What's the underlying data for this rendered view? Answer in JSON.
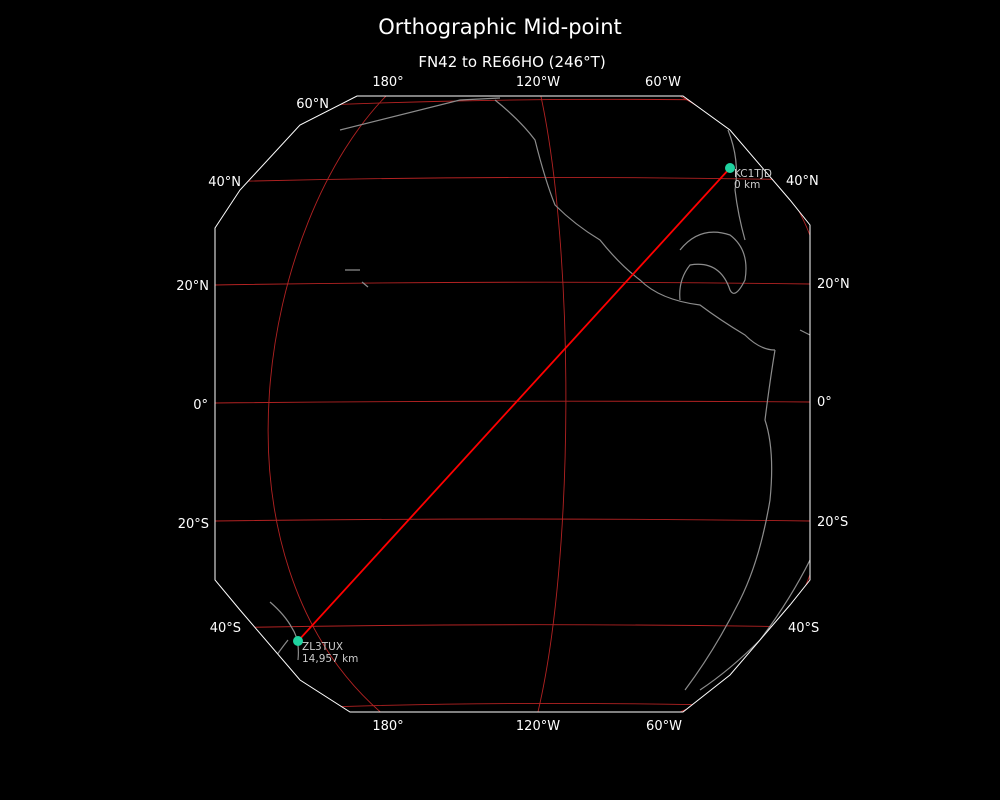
{
  "title": "Orthographic Mid-point",
  "subtitle": "FN42 to RE66HO (246°T)",
  "colors": {
    "background": "#000000",
    "graticule": "#b22222",
    "path": "#ff0000",
    "point": "#1fd3a0",
    "coastline": "#8c8c8c",
    "boundary": "#ffffff"
  },
  "graticule_labels": {
    "top": [
      "180°",
      "120°W",
      "60°W"
    ],
    "bottom": [
      "180°",
      "120°W",
      "60°W"
    ],
    "left": [
      "60°N",
      "40°N",
      "20°N",
      "0°",
      "20°S",
      "40°S"
    ],
    "right": [
      "40°N",
      "20°N",
      "0°",
      "20°S",
      "40°S"
    ]
  },
  "points": [
    {
      "call": "KC1TJD",
      "distance": "0 km"
    },
    {
      "call": "ZL3TUX",
      "distance": "14,957 km"
    }
  ]
}
